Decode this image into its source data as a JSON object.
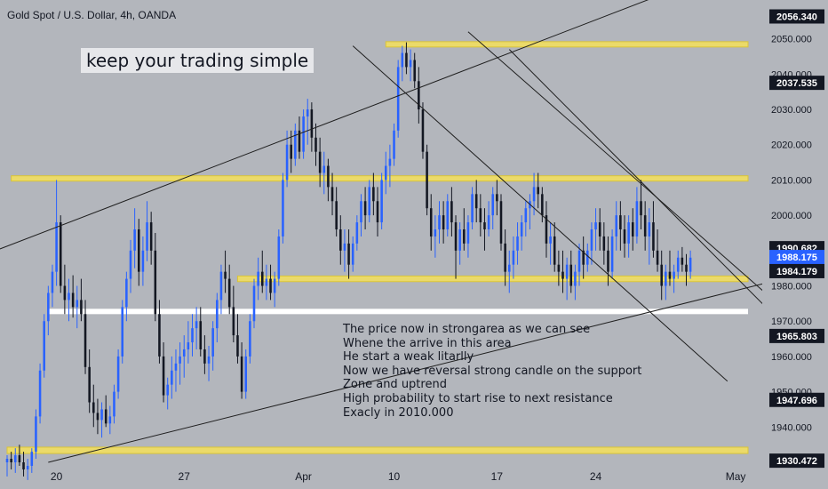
{
  "header": {
    "title": "Gold Spot / U.S. Dollar, 4h, OANDA"
  },
  "banner": "keep your trading simple",
  "annotation": [
    "The price now in strongarea as we can see",
    "Whene the arrive in this area",
    "He start a weak litarlly",
    "Now we have reversal strong candle on the support",
    "Zone and uptrend",
    "High probability to start rise to next resistance",
    "Exacly in 2010.000"
  ],
  "colors": {
    "background": "#b3b6bc",
    "up_candle": "#2962ff",
    "down_candle": "#131722",
    "zone": "#f5e05a",
    "support_zone": "#ffffff",
    "line": "#1f1f1f",
    "current_price_label": "#2962ff"
  },
  "chart_data": {
    "type": "candlestick",
    "symbol": "Gold Spot / U.S. Dollar",
    "timeframe": "4h",
    "source": "OANDA",
    "y_axis_label": "USD",
    "ylim": [
      1930,
      2061
    ],
    "y_ticks": [
      1940,
      1950,
      1960,
      1970,
      1980,
      1990,
      2000,
      2010,
      2020,
      2030,
      2040,
      2050
    ],
    "x_ticks": [
      "20",
      "27",
      "Apr",
      "10",
      "17",
      "24",
      "May"
    ],
    "x_range_bars": [
      0,
      180
    ],
    "x_tick_bars": [
      12,
      43,
      72,
      94,
      119,
      143,
      177
    ],
    "price_labels": [
      {
        "value": 2056.34,
        "text": "2056.340"
      },
      {
        "value": 2037.535,
        "text": "2037.535"
      },
      {
        "value": 1990.682,
        "text": "1990.682"
      },
      {
        "value": 1988.175,
        "text": "1988.175",
        "current": true
      },
      {
        "value": 1984.179,
        "text": "1984.179"
      },
      {
        "value": 1965.803,
        "text": "1965.803"
      },
      {
        "value": 1947.696,
        "text": "1947.696"
      },
      {
        "value": 1930.472,
        "text": "1930.472"
      }
    ],
    "zones": [
      {
        "name": "resistance-top",
        "y_low": 2047.8,
        "y_high": 2049.2,
        "x_start_bar": 92,
        "x_end_bar": 180,
        "color": "#f5e05a"
      },
      {
        "name": "resistance-mid",
        "y_low": 2009.8,
        "y_high": 2011.2,
        "x_start_bar": 1,
        "x_end_bar": 180,
        "color": "#f5e05a"
      },
      {
        "name": "support",
        "y_low": 1981.2,
        "y_high": 1982.8,
        "x_start_bar": 56,
        "x_end_bar": 180,
        "color": "#f5e05a"
      },
      {
        "name": "support-strong",
        "y_low": 1972.2,
        "y_high": 1973.5,
        "x_start_bar": 10,
        "x_end_bar": 180,
        "color": "#ffffff"
      },
      {
        "name": "bottom",
        "y_low": 1932.5,
        "y_high": 1934.3,
        "x_start_bar": 0,
        "x_end_bar": 180,
        "color": "#f5e05a"
      }
    ],
    "trendlines": [
      {
        "name": "upper-channel",
        "points": [
          [
            -5,
            1989
          ],
          [
            160,
            2063
          ]
        ]
      },
      {
        "name": "lower-channel",
        "points": [
          [
            10,
            1930
          ],
          [
            209,
            1988
          ]
        ]
      },
      {
        "name": "descending-upper",
        "points": [
          [
            122,
            2047
          ],
          [
            192,
            1965
          ]
        ]
      },
      {
        "name": "descending-mid",
        "points": [
          [
            84,
            2048
          ],
          [
            175,
            1953
          ]
        ]
      },
      {
        "name": "descending-lower",
        "points": [
          [
            112,
            2052
          ],
          [
            192,
            1970
          ]
        ]
      },
      {
        "name": "projection",
        "points": [
          [
            188,
            1990
          ],
          [
            191,
            1995
          ],
          [
            194,
            2007
          ],
          [
            196,
            2002
          ]
        ]
      }
    ],
    "candles": [
      {
        "o": 1930,
        "h": 1932,
        "l": 1926,
        "c": 1931
      },
      {
        "o": 1931,
        "h": 1933,
        "l": 1928,
        "c": 1930
      },
      {
        "o": 1930,
        "h": 1934,
        "l": 1927,
        "c": 1932
      },
      {
        "o": 1932,
        "h": 1935,
        "l": 1929,
        "c": 1930
      },
      {
        "o": 1930,
        "h": 1933,
        "l": 1926,
        "c": 1928
      },
      {
        "o": 1928,
        "h": 1931,
        "l": 1925,
        "c": 1929
      },
      {
        "o": 1929,
        "h": 1934,
        "l": 1927,
        "c": 1933
      },
      {
        "o": 1933,
        "h": 1945,
        "l": 1931,
        "c": 1943
      },
      {
        "o": 1943,
        "h": 1958,
        "l": 1941,
        "c": 1956
      },
      {
        "o": 1956,
        "h": 1972,
        "l": 1954,
        "c": 1970
      },
      {
        "o": 1970,
        "h": 1980,
        "l": 1966,
        "c": 1978
      },
      {
        "o": 1978,
        "h": 1986,
        "l": 1974,
        "c": 1984
      },
      {
        "o": 1984,
        "h": 2010,
        "l": 1980,
        "c": 1998
      },
      {
        "o": 1998,
        "h": 2000,
        "l": 1978,
        "c": 1980
      },
      {
        "o": 1980,
        "h": 1986,
        "l": 1972,
        "c": 1976
      },
      {
        "o": 1976,
        "h": 1982,
        "l": 1970,
        "c": 1978
      },
      {
        "o": 1978,
        "h": 1983,
        "l": 1971,
        "c": 1974
      },
      {
        "o": 1974,
        "h": 1980,
        "l": 1968,
        "c": 1976
      },
      {
        "o": 1976,
        "h": 1982,
        "l": 1970,
        "c": 1972
      },
      {
        "o": 1972,
        "h": 1976,
        "l": 1955,
        "c": 1957
      },
      {
        "o": 1957,
        "h": 1962,
        "l": 1944,
        "c": 1947
      },
      {
        "o": 1947,
        "h": 1952,
        "l": 1940,
        "c": 1944
      },
      {
        "o": 1944,
        "h": 1948,
        "l": 1938,
        "c": 1942
      },
      {
        "o": 1942,
        "h": 1947,
        "l": 1937,
        "c": 1945
      },
      {
        "o": 1945,
        "h": 1949,
        "l": 1940,
        "c": 1941
      },
      {
        "o": 1941,
        "h": 1946,
        "l": 1938,
        "c": 1943
      },
      {
        "o": 1943,
        "h": 1952,
        "l": 1941,
        "c": 1950
      },
      {
        "o": 1950,
        "h": 1962,
        "l": 1948,
        "c": 1960
      },
      {
        "o": 1960,
        "h": 1976,
        "l": 1958,
        "c": 1974
      },
      {
        "o": 1974,
        "h": 1984,
        "l": 1970,
        "c": 1982
      },
      {
        "o": 1982,
        "h": 1993,
        "l": 1978,
        "c": 1990
      },
      {
        "o": 1990,
        "h": 2002,
        "l": 1985,
        "c": 1996
      },
      {
        "o": 1996,
        "h": 1999,
        "l": 1980,
        "c": 1984
      },
      {
        "o": 1984,
        "h": 1994,
        "l": 1980,
        "c": 1990
      },
      {
        "o": 1990,
        "h": 2004,
        "l": 1987,
        "c": 1998
      },
      {
        "o": 1998,
        "h": 2001,
        "l": 1986,
        "c": 1990
      },
      {
        "o": 1990,
        "h": 1995,
        "l": 1970,
        "c": 1972
      },
      {
        "o": 1972,
        "h": 1976,
        "l": 1958,
        "c": 1960
      },
      {
        "o": 1960,
        "h": 1964,
        "l": 1947,
        "c": 1949
      },
      {
        "o": 1949,
        "h": 1954,
        "l": 1945,
        "c": 1952
      },
      {
        "o": 1952,
        "h": 1960,
        "l": 1948,
        "c": 1956
      },
      {
        "o": 1956,
        "h": 1962,
        "l": 1950,
        "c": 1958
      },
      {
        "o": 1958,
        "h": 1964,
        "l": 1952,
        "c": 1960
      },
      {
        "o": 1960,
        "h": 1966,
        "l": 1954,
        "c": 1962
      },
      {
        "o": 1962,
        "h": 1970,
        "l": 1958,
        "c": 1964
      },
      {
        "o": 1964,
        "h": 1972,
        "l": 1960,
        "c": 1968
      },
      {
        "o": 1968,
        "h": 1974,
        "l": 1962,
        "c": 1970
      },
      {
        "o": 1970,
        "h": 1974,
        "l": 1960,
        "c": 1962
      },
      {
        "o": 1962,
        "h": 1966,
        "l": 1955,
        "c": 1958
      },
      {
        "o": 1958,
        "h": 1963,
        "l": 1953,
        "c": 1960
      },
      {
        "o": 1960,
        "h": 1970,
        "l": 1956,
        "c": 1968
      },
      {
        "o": 1968,
        "h": 1978,
        "l": 1964,
        "c": 1976
      },
      {
        "o": 1976,
        "h": 1986,
        "l": 1972,
        "c": 1984
      },
      {
        "o": 1984,
        "h": 1990,
        "l": 1978,
        "c": 1982
      },
      {
        "o": 1982,
        "h": 1986,
        "l": 1972,
        "c": 1974
      },
      {
        "o": 1974,
        "h": 1980,
        "l": 1964,
        "c": 1966
      },
      {
        "o": 1966,
        "h": 1972,
        "l": 1958,
        "c": 1960
      },
      {
        "o": 1960,
        "h": 1964,
        "l": 1948,
        "c": 1950
      },
      {
        "o": 1950,
        "h": 1962,
        "l": 1948,
        "c": 1960
      },
      {
        "o": 1960,
        "h": 1972,
        "l": 1958,
        "c": 1970
      },
      {
        "o": 1970,
        "h": 1982,
        "l": 1968,
        "c": 1980
      },
      {
        "o": 1980,
        "h": 1988,
        "l": 1976,
        "c": 1984
      },
      {
        "o": 1984,
        "h": 1990,
        "l": 1978,
        "c": 1980
      },
      {
        "o": 1980,
        "h": 1986,
        "l": 1976,
        "c": 1982
      },
      {
        "o": 1982,
        "h": 1986,
        "l": 1976,
        "c": 1978
      },
      {
        "o": 1978,
        "h": 1984,
        "l": 1974,
        "c": 1982
      },
      {
        "o": 1982,
        "h": 1996,
        "l": 1980,
        "c": 1994
      },
      {
        "o": 1994,
        "h": 2012,
        "l": 1992,
        "c": 2010
      },
      {
        "o": 2010,
        "h": 2024,
        "l": 2008,
        "c": 2020
      },
      {
        "o": 2020,
        "h": 2024,
        "l": 2012,
        "c": 2016
      },
      {
        "o": 2016,
        "h": 2026,
        "l": 2014,
        "c": 2024
      },
      {
        "o": 2024,
        "h": 2028,
        "l": 2016,
        "c": 2018
      },
      {
        "o": 2018,
        "h": 2030,
        "l": 2016,
        "c": 2028
      },
      {
        "o": 2028,
        "h": 2033,
        "l": 2020,
        "c": 2030
      },
      {
        "o": 2030,
        "h": 2032,
        "l": 2018,
        "c": 2022
      },
      {
        "o": 2022,
        "h": 2026,
        "l": 2014,
        "c": 2018
      },
      {
        "o": 2018,
        "h": 2022,
        "l": 2008,
        "c": 2012
      },
      {
        "o": 2012,
        "h": 2018,
        "l": 2006,
        "c": 2014
      },
      {
        "o": 2014,
        "h": 2016,
        "l": 2004,
        "c": 2008
      },
      {
        "o": 2008,
        "h": 2012,
        "l": 2000,
        "c": 2004
      },
      {
        "o": 2004,
        "h": 2008,
        "l": 1994,
        "c": 1996
      },
      {
        "o": 1996,
        "h": 2000,
        "l": 1986,
        "c": 1990
      },
      {
        "o": 1990,
        "h": 1996,
        "l": 1984,
        "c": 1992
      },
      {
        "o": 1992,
        "h": 1996,
        "l": 1982,
        "c": 1986
      },
      {
        "o": 1986,
        "h": 1994,
        "l": 1984,
        "c": 1992
      },
      {
        "o": 1992,
        "h": 2000,
        "l": 1990,
        "c": 1998
      },
      {
        "o": 1998,
        "h": 2006,
        "l": 1994,
        "c": 2004
      },
      {
        "o": 2004,
        "h": 2008,
        "l": 1996,
        "c": 2000
      },
      {
        "o": 2000,
        "h": 2010,
        "l": 1998,
        "c": 2008
      },
      {
        "o": 2008,
        "h": 2012,
        "l": 2000,
        "c": 2004
      },
      {
        "o": 2004,
        "h": 2008,
        "l": 1994,
        "c": 1998
      },
      {
        "o": 1998,
        "h": 2012,
        "l": 1996,
        "c": 2010
      },
      {
        "o": 2010,
        "h": 2018,
        "l": 2006,
        "c": 2014
      },
      {
        "o": 2014,
        "h": 2020,
        "l": 2008,
        "c": 2016
      },
      {
        "o": 2016,
        "h": 2026,
        "l": 2014,
        "c": 2024
      },
      {
        "o": 2024,
        "h": 2044,
        "l": 2022,
        "c": 2042
      },
      {
        "o": 2042,
        "h": 2048,
        "l": 2038,
        "c": 2046
      },
      {
        "o": 2046,
        "h": 2049,
        "l": 2040,
        "c": 2042
      },
      {
        "o": 2042,
        "h": 2047,
        "l": 2038,
        "c": 2044
      },
      {
        "o": 2044,
        "h": 2046,
        "l": 2036,
        "c": 2038
      },
      {
        "o": 2038,
        "h": 2042,
        "l": 2026,
        "c": 2030
      },
      {
        "o": 2030,
        "h": 2032,
        "l": 2016,
        "c": 2018
      },
      {
        "o": 2018,
        "h": 2020,
        "l": 2000,
        "c": 2002
      },
      {
        "o": 2002,
        "h": 2006,
        "l": 1990,
        "c": 1994
      },
      {
        "o": 1994,
        "h": 2000,
        "l": 1988,
        "c": 1996
      },
      {
        "o": 1996,
        "h": 2004,
        "l": 1992,
        "c": 2000
      },
      {
        "o": 2000,
        "h": 2004,
        "l": 1992,
        "c": 1996
      },
      {
        "o": 1996,
        "h": 2006,
        "l": 1994,
        "c": 2004
      },
      {
        "o": 2004,
        "h": 2008,
        "l": 1994,
        "c": 1998
      },
      {
        "o": 1998,
        "h": 2000,
        "l": 1982,
        "c": 1990
      },
      {
        "o": 1990,
        "h": 1998,
        "l": 1986,
        "c": 1996
      },
      {
        "o": 1996,
        "h": 2002,
        "l": 1990,
        "c": 1992
      },
      {
        "o": 1992,
        "h": 2000,
        "l": 1988,
        "c": 1998
      },
      {
        "o": 1998,
        "h": 2008,
        "l": 1996,
        "c": 2006
      },
      {
        "o": 2006,
        "h": 2010,
        "l": 1998,
        "c": 2002
      },
      {
        "o": 2002,
        "h": 2006,
        "l": 1994,
        "c": 1998
      },
      {
        "o": 1998,
        "h": 2002,
        "l": 1990,
        "c": 1996
      },
      {
        "o": 1996,
        "h": 2004,
        "l": 1994,
        "c": 2000
      },
      {
        "o": 2000,
        "h": 2008,
        "l": 1996,
        "c": 2006
      },
      {
        "o": 2006,
        "h": 2010,
        "l": 2000,
        "c": 2004
      },
      {
        "o": 2004,
        "h": 2006,
        "l": 1990,
        "c": 1992
      },
      {
        "o": 1992,
        "h": 1996,
        "l": 1980,
        "c": 1984
      },
      {
        "o": 1984,
        "h": 1990,
        "l": 1978,
        "c": 1986
      },
      {
        "o": 1986,
        "h": 1994,
        "l": 1982,
        "c": 1990
      },
      {
        "o": 1990,
        "h": 1998,
        "l": 1986,
        "c": 1994
      },
      {
        "o": 1994,
        "h": 2000,
        "l": 1990,
        "c": 1998
      },
      {
        "o": 1998,
        "h": 2004,
        "l": 1994,
        "c": 2002
      },
      {
        "o": 2002,
        "h": 2006,
        "l": 1996,
        "c": 2004
      },
      {
        "o": 2004,
        "h": 2012,
        "l": 2000,
        "c": 2008
      },
      {
        "o": 2008,
        "h": 2012,
        "l": 2002,
        "c": 2006
      },
      {
        "o": 2006,
        "h": 2008,
        "l": 1998,
        "c": 2000
      },
      {
        "o": 2000,
        "h": 2004,
        "l": 1988,
        "c": 1992
      },
      {
        "o": 1992,
        "h": 1998,
        "l": 1986,
        "c": 1994
      },
      {
        "o": 1994,
        "h": 1998,
        "l": 1984,
        "c": 1986
      },
      {
        "o": 1986,
        "h": 1990,
        "l": 1980,
        "c": 1984
      },
      {
        "o": 1984,
        "h": 1990,
        "l": 1978,
        "c": 1982
      },
      {
        "o": 1982,
        "h": 1988,
        "l": 1976,
        "c": 1986
      },
      {
        "o": 1986,
        "h": 1990,
        "l": 1978,
        "c": 1980
      },
      {
        "o": 1980,
        "h": 1986,
        "l": 1976,
        "c": 1984
      },
      {
        "o": 1984,
        "h": 1992,
        "l": 1980,
        "c": 1990
      },
      {
        "o": 1990,
        "h": 1994,
        "l": 1982,
        "c": 1986
      },
      {
        "o": 1986,
        "h": 1992,
        "l": 1984,
        "c": 1990
      },
      {
        "o": 1990,
        "h": 1998,
        "l": 1986,
        "c": 1996
      },
      {
        "o": 1996,
        "h": 2002,
        "l": 1990,
        "c": 1998
      },
      {
        "o": 1998,
        "h": 2002,
        "l": 1990,
        "c": 1994
      },
      {
        "o": 1994,
        "h": 1998,
        "l": 1986,
        "c": 1990
      },
      {
        "o": 1990,
        "h": 1994,
        "l": 1980,
        "c": 1984
      },
      {
        "o": 1984,
        "h": 1996,
        "l": 1982,
        "c": 1994
      },
      {
        "o": 1994,
        "h": 2004,
        "l": 1990,
        "c": 2000
      },
      {
        "o": 2000,
        "h": 2004,
        "l": 1990,
        "c": 1996
      },
      {
        "o": 1996,
        "h": 2000,
        "l": 1988,
        "c": 1992
      },
      {
        "o": 1992,
        "h": 2000,
        "l": 1988,
        "c": 1998
      },
      {
        "o": 1998,
        "h": 2002,
        "l": 1990,
        "c": 1994
      },
      {
        "o": 1994,
        "h": 2008,
        "l": 1992,
        "c": 2004
      },
      {
        "o": 2004,
        "h": 2010,
        "l": 1996,
        "c": 2000
      },
      {
        "o": 2000,
        "h": 2004,
        "l": 1990,
        "c": 1994
      },
      {
        "o": 1994,
        "h": 2002,
        "l": 1986,
        "c": 1998
      },
      {
        "o": 1998,
        "h": 2004,
        "l": 1988,
        "c": 1990
      },
      {
        "o": 1990,
        "h": 1996,
        "l": 1984,
        "c": 1986
      },
      {
        "o": 1986,
        "h": 1990,
        "l": 1976,
        "c": 1980
      },
      {
        "o": 1980,
        "h": 1986,
        "l": 1976,
        "c": 1984
      },
      {
        "o": 1984,
        "h": 1990,
        "l": 1980,
        "c": 1982
      },
      {
        "o": 1982,
        "h": 1986,
        "l": 1978,
        "c": 1984
      },
      {
        "o": 1984,
        "h": 1990,
        "l": 1982,
        "c": 1988
      },
      {
        "o": 1988,
        "h": 1991,
        "l": 1984,
        "c": 1986
      },
      {
        "o": 1986,
        "h": 1989,
        "l": 1980,
        "c": 1984
      },
      {
        "o": 1984,
        "h": 1990,
        "l": 1982,
        "c": 1988
      }
    ]
  }
}
